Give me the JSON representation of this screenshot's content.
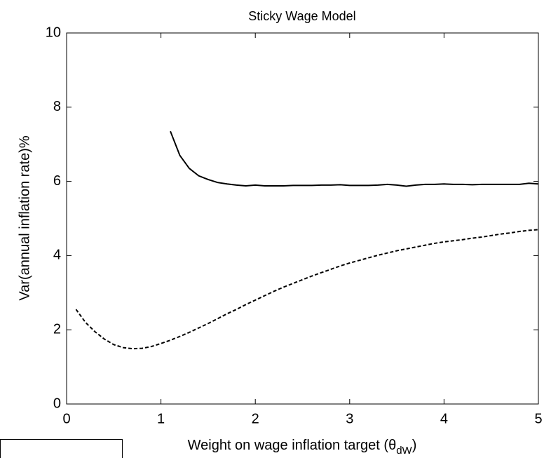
{
  "chart_data": {
    "type": "line",
    "title": "Sticky Wage Model",
    "xlabel": {
      "text": "Weight on wage inflation target (θ",
      "subscript": "dW",
      "suffix": ")"
    },
    "ylabel": "Var(annual inflation rate)%",
    "x": [
      0.1,
      0.2,
      0.3,
      0.4,
      0.5,
      0.6,
      0.7,
      0.8,
      0.9,
      1.0,
      1.1,
      1.2,
      1.3,
      1.4,
      1.5,
      1.6,
      1.7,
      1.8,
      1.9,
      2.0,
      2.1,
      2.2,
      2.3,
      2.4,
      2.5,
      2.6,
      2.7,
      2.8,
      2.9,
      3.0,
      3.1,
      3.2,
      3.3,
      3.4,
      3.5,
      3.6,
      3.7,
      3.8,
      3.9,
      4.0,
      4.1,
      4.2,
      4.3,
      4.4,
      4.5,
      4.6,
      4.7,
      4.8,
      4.9,
      5.0
    ],
    "series": [
      {
        "color": "#000000",
        "style": "solid",
        "values": [
          null,
          null,
          null,
          null,
          null,
          null,
          null,
          null,
          null,
          null,
          7.35,
          6.7,
          6.35,
          6.15,
          6.05,
          5.97,
          5.93,
          5.9,
          5.88,
          5.9,
          5.88,
          5.88,
          5.88,
          5.89,
          5.89,
          5.89,
          5.9,
          5.9,
          5.91,
          5.89,
          5.89,
          5.89,
          5.9,
          5.92,
          5.9,
          5.87,
          5.9,
          5.92,
          5.92,
          5.93,
          5.92,
          5.92,
          5.91,
          5.92,
          5.92,
          5.92,
          5.92,
          5.92,
          5.95,
          5.93
        ]
      },
      {
        "color": "#000000",
        "style": "dashed",
        "values": [
          2.55,
          2.2,
          1.95,
          1.75,
          1.6,
          1.52,
          1.49,
          1.5,
          1.55,
          1.63,
          1.72,
          1.82,
          1.93,
          2.05,
          2.17,
          2.3,
          2.43,
          2.55,
          2.68,
          2.8,
          2.92,
          3.04,
          3.15,
          3.25,
          3.35,
          3.45,
          3.54,
          3.63,
          3.72,
          3.8,
          3.87,
          3.94,
          4.01,
          4.07,
          4.13,
          4.18,
          4.23,
          4.28,
          4.33,
          4.37,
          4.4,
          4.43,
          4.47,
          4.5,
          4.54,
          4.58,
          4.61,
          4.65,
          4.68,
          4.7
        ]
      }
    ],
    "xlim": [
      0,
      5
    ],
    "xticks": [
      0,
      1,
      2,
      3,
      4,
      5
    ],
    "ylim": [
      0,
      10
    ],
    "yticks": [
      0,
      2,
      4,
      6,
      8,
      10
    ]
  }
}
